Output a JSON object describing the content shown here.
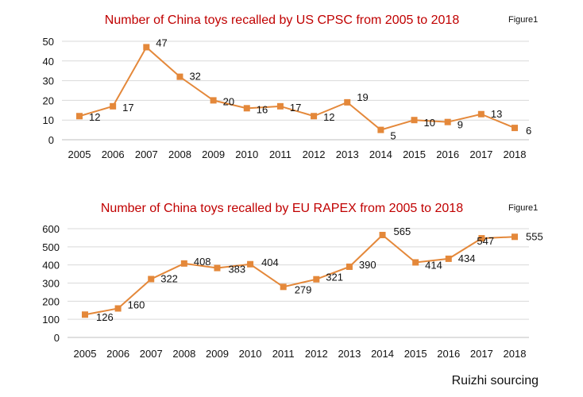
{
  "source_text": "Ruizhi sourcing",
  "chart_data": [
    {
      "type": "line",
      "title": "Number of China toys recalled by US CPSC from 2005 to 2018",
      "figure_label": "Figure1",
      "x": [
        "2005",
        "2006",
        "2007",
        "2008",
        "2009",
        "2010",
        "2011",
        "2012",
        "2013",
        "2014",
        "2015",
        "2016",
        "2017",
        "2018"
      ],
      "series": [
        {
          "values": [
            12,
            17,
            47,
            32,
            20,
            16,
            17,
            12,
            19,
            5,
            10,
            9,
            13,
            6
          ]
        }
      ],
      "ylim": [
        0,
        50
      ],
      "yticks": [
        0,
        10,
        20,
        30,
        40,
        50
      ],
      "grid": true,
      "legend": "none",
      "color": "#e4883a"
    },
    {
      "type": "line",
      "title": "Number of China toys recalled by EU RAPEX from 2005 to 2018",
      "figure_label": "Figure1",
      "x": [
        "2005",
        "2006",
        "2007",
        "2008",
        "2009",
        "2010",
        "2011",
        "2012",
        "2013",
        "2014",
        "2015",
        "2016",
        "2017",
        "2018"
      ],
      "series": [
        {
          "values": [
            126,
            160,
            322,
            408,
            383,
            404,
            279,
            321,
            390,
            565,
            414,
            434,
            547,
            555
          ]
        }
      ],
      "ylim": [
        0,
        600
      ],
      "yticks": [
        0,
        100,
        200,
        300,
        400,
        500,
        600
      ],
      "grid": true,
      "legend": "none",
      "color": "#e4883a"
    }
  ]
}
